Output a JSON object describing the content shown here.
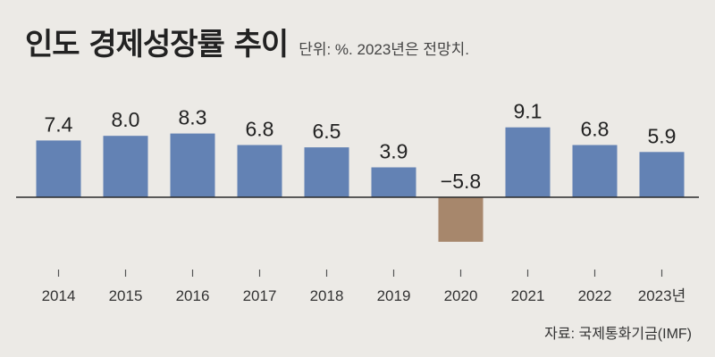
{
  "header": {
    "title": "인도 경제성장률 추이",
    "subtitle": "단위: %. 2023년은 전망치."
  },
  "source": "자료: 국제통화기금(IMF)",
  "colors": {
    "positive": "#6382b4",
    "negative": "#a7876c",
    "baseline": "#2a2a2a",
    "tick": "#555555"
  },
  "chart_data": {
    "type": "bar",
    "title": "인도 경제성장률 추이",
    "ylabel": "%",
    "xlabel": "",
    "categories": [
      "2014",
      "2015",
      "2016",
      "2017",
      "2018",
      "2019",
      "2020",
      "2021",
      "2022",
      "2023년"
    ],
    "values": [
      7.4,
      8.0,
      8.3,
      6.8,
      6.5,
      3.9,
      -5.8,
      9.1,
      6.8,
      5.9
    ],
    "value_labels": [
      "7.4",
      "8.0",
      "8.3",
      "6.8",
      "6.5",
      "3.9",
      "−5.8",
      "9.1",
      "6.8",
      "5.9"
    ],
    "ylim": [
      -6,
      10
    ],
    "grid": false,
    "legend": "none"
  }
}
